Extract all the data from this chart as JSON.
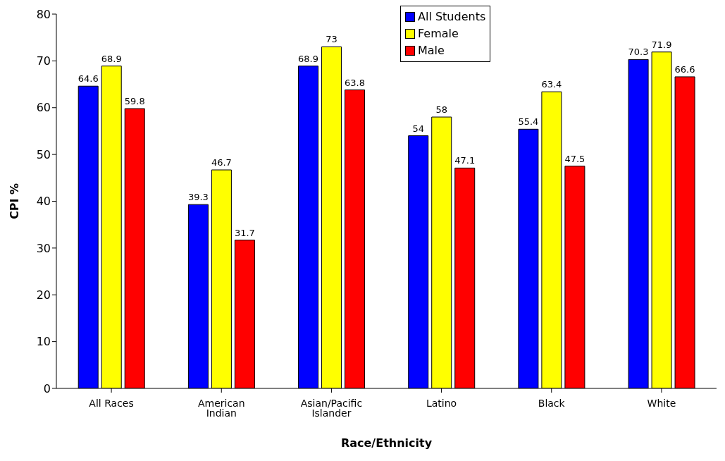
{
  "chart_data": {
    "type": "bar",
    "xlabel": "Race/Ethnicity",
    "ylabel": "CPI %",
    "categories": [
      "All Races",
      "American Indian",
      "Asian/Pacific Islander",
      "Latino",
      "Black",
      "White"
    ],
    "series": [
      {
        "name": "All Students",
        "color": "#0000ff",
        "values": [
          64.6,
          39.3,
          68.9,
          54,
          55.4,
          70.3
        ]
      },
      {
        "name": "Female",
        "color": "#ffff00",
        "values": [
          68.9,
          46.7,
          73,
          58,
          63.4,
          71.9
        ]
      },
      {
        "name": "Male",
        "color": "#ff0000",
        "values": [
          59.8,
          31.7,
          63.8,
          47.1,
          47.5,
          66.6
        ]
      }
    ],
    "ylim": [
      0,
      80
    ],
    "yticks": [
      0,
      10,
      20,
      30,
      40,
      50,
      60,
      70,
      80
    ],
    "grid": false,
    "legend": "top",
    "data_labels": true
  }
}
